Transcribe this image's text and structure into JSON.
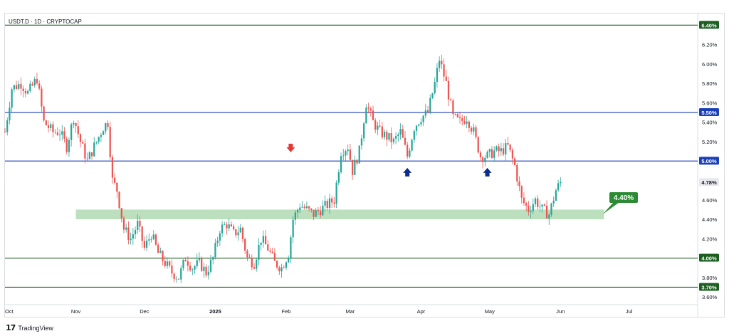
{
  "symbol": "USDT.D · 1D · CRYPTOCAP",
  "brand": "TradingView",
  "colors": {
    "up": "#26a69a",
    "down": "#ef5350",
    "hline_green": "#1b5e20",
    "hline_blue": "#1a3fb8",
    "zone": "#a5d6a7",
    "zone_label_bg": "#2e8b35",
    "arrow_red": "#e53935",
    "arrow_blue": "#0d2c8c"
  },
  "chart_data": {
    "type": "candlestick",
    "ylim": [
      3.52,
      6.52
    ],
    "y_scale": "linear",
    "x_range": [
      "2024-10-01",
      "2025-07-31"
    ],
    "x_ticks": [
      {
        "date": "2024-10-01",
        "label": "Oct"
      },
      {
        "date": "2024-11-01",
        "label": "Nov"
      },
      {
        "date": "2024-12-01",
        "label": "Dec"
      },
      {
        "date": "2025-01-01",
        "label": "2025"
      },
      {
        "date": "2025-02-01",
        "label": "Feb"
      },
      {
        "date": "2025-03-01",
        "label": "Mar"
      },
      {
        "date": "2025-04-01",
        "label": "Apr"
      },
      {
        "date": "2025-05-01",
        "label": "May"
      },
      {
        "date": "2025-06-01",
        "label": "Jun"
      },
      {
        "date": "2025-07-01",
        "label": "Jul"
      }
    ],
    "y_ticks": [
      "3.60%",
      "3.80%",
      "4.20%",
      "4.40%",
      "4.60%",
      "5.20%",
      "5.40%",
      "5.60%",
      "5.80%",
      "6.00%",
      "6.20%"
    ],
    "hlines": [
      {
        "value": 6.4,
        "label": "6.40%",
        "color": "green"
      },
      {
        "value": 5.5,
        "label": "5.50%",
        "color": "blue"
      },
      {
        "value": 5.0,
        "label": "5.00%",
        "color": "blue"
      },
      {
        "value": 4.0,
        "label": "4.00%",
        "color": "green"
      },
      {
        "value": 3.7,
        "label": "3.70%",
        "color": "green"
      }
    ],
    "last_price": {
      "value": 4.78,
      "label": "4.78%"
    },
    "zone": {
      "low": 4.4,
      "high": 4.5,
      "start": "2024-11-01",
      "end": "2025-06-20",
      "label": "4.40%"
    },
    "arrows": [
      {
        "date": "2025-02-03",
        "value": 5.12,
        "direction": "down",
        "color": "red"
      },
      {
        "date": "2025-03-26",
        "value": 4.9,
        "direction": "up",
        "color": "blue"
      },
      {
        "date": "2025-04-30",
        "value": 4.9,
        "direction": "up",
        "color": "blue"
      }
    ],
    "waypoints": [
      [
        "2024-10-01",
        5.3
      ],
      [
        "2024-10-04",
        5.75
      ],
      [
        "2024-10-08",
        5.8
      ],
      [
        "2024-10-11",
        5.7
      ],
      [
        "2024-10-15",
        5.85
      ],
      [
        "2024-10-18",
        5.4
      ],
      [
        "2024-10-22",
        5.3
      ],
      [
        "2024-10-25",
        5.3
      ],
      [
        "2024-10-28",
        5.15
      ],
      [
        "2024-10-31",
        5.45
      ],
      [
        "2024-11-03",
        5.2
      ],
      [
        "2024-11-06",
        5.0
      ],
      [
        "2024-11-10",
        5.2
      ],
      [
        "2024-11-13",
        5.35
      ],
      [
        "2024-11-15",
        5.4
      ],
      [
        "2024-11-17",
        4.8
      ],
      [
        "2024-11-19",
        4.7
      ],
      [
        "2024-11-22",
        4.3
      ],
      [
        "2024-11-25",
        4.2
      ],
      [
        "2024-11-28",
        4.35
      ],
      [
        "2024-12-01",
        4.1
      ],
      [
        "2024-12-04",
        4.25
      ],
      [
        "2024-12-07",
        4.05
      ],
      [
        "2024-12-10",
        3.95
      ],
      [
        "2024-12-13",
        3.85
      ],
      [
        "2024-12-16",
        3.8
      ],
      [
        "2024-12-19",
        4.0
      ],
      [
        "2024-12-22",
        3.9
      ],
      [
        "2024-12-25",
        3.95
      ],
      [
        "2024-12-28",
        3.85
      ],
      [
        "2024-12-31",
        4.0
      ],
      [
        "2025-01-03",
        4.3
      ],
      [
        "2025-01-06",
        4.35
      ],
      [
        "2025-01-09",
        4.25
      ],
      [
        "2025-01-12",
        4.3
      ],
      [
        "2025-01-15",
        4.0
      ],
      [
        "2025-01-18",
        3.95
      ],
      [
        "2025-01-21",
        4.2
      ],
      [
        "2025-01-24",
        4.1
      ],
      [
        "2025-01-27",
        3.95
      ],
      [
        "2025-01-30",
        3.9
      ],
      [
        "2025-02-02",
        4.05
      ],
      [
        "2025-02-04",
        4.4
      ],
      [
        "2025-02-07",
        4.55
      ],
      [
        "2025-02-10",
        4.5
      ],
      [
        "2025-02-13",
        4.45
      ],
      [
        "2025-02-16",
        4.5
      ],
      [
        "2025-02-19",
        4.55
      ],
      [
        "2025-02-22",
        4.6
      ],
      [
        "2025-02-25",
        5.1
      ],
      [
        "2025-02-28",
        5.15
      ],
      [
        "2025-03-02",
        4.9
      ],
      [
        "2025-03-05",
        5.1
      ],
      [
        "2025-03-08",
        5.6
      ],
      [
        "2025-03-11",
        5.4
      ],
      [
        "2025-03-14",
        5.3
      ],
      [
        "2025-03-17",
        5.25
      ],
      [
        "2025-03-20",
        5.2
      ],
      [
        "2025-03-23",
        5.3
      ],
      [
        "2025-03-26",
        5.05
      ],
      [
        "2025-03-29",
        5.35
      ],
      [
        "2025-04-01",
        5.45
      ],
      [
        "2025-04-04",
        5.5
      ],
      [
        "2025-04-07",
        5.8
      ],
      [
        "2025-04-09",
        6.05
      ],
      [
        "2025-04-12",
        5.8
      ],
      [
        "2025-04-15",
        5.45
      ],
      [
        "2025-04-18",
        5.4
      ],
      [
        "2025-04-21",
        5.45
      ],
      [
        "2025-04-24",
        5.3
      ],
      [
        "2025-04-27",
        5.05
      ],
      [
        "2025-04-30",
        5.05
      ],
      [
        "2025-05-03",
        5.1
      ],
      [
        "2025-05-06",
        5.1
      ],
      [
        "2025-05-09",
        5.15
      ],
      [
        "2025-05-12",
        4.95
      ],
      [
        "2025-05-15",
        4.6
      ],
      [
        "2025-05-18",
        4.5
      ],
      [
        "2025-05-21",
        4.6
      ],
      [
        "2025-05-24",
        4.5
      ],
      [
        "2025-05-27",
        4.45
      ],
      [
        "2025-05-30",
        4.7
      ],
      [
        "2025-06-01",
        4.78
      ]
    ]
  }
}
